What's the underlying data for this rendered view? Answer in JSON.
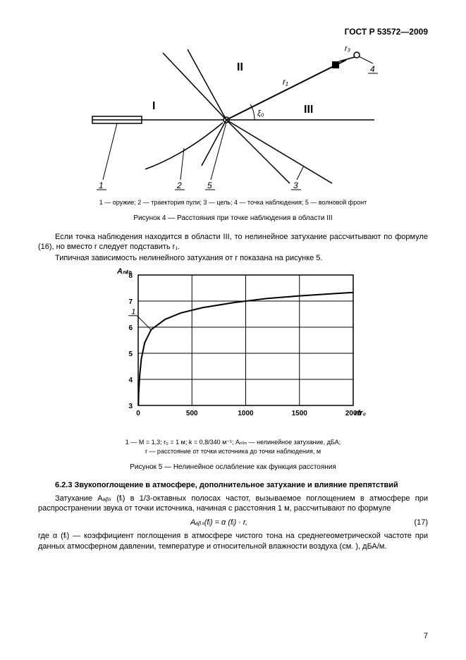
{
  "header": {
    "doc_id": "ГОСТ Р 53572—2009"
  },
  "fig4": {
    "legend_items": [
      "1 — оружие; 2 — траектория пули; 3 — цель; 4 — точка наблюдения; 5 — волновой фронт"
    ],
    "title": "Рисунок 4 — Расстояния при точке наблюдения в области III",
    "labels": {
      "I": "I",
      "II": "II",
      "III": "III",
      "r1": "r₁",
      "r3": "r₃",
      "xi": "ξ₀",
      "n1": "1",
      "n2": "2",
      "n3": "3",
      "n4": "4",
      "n5": "5"
    },
    "stroke": "#000000"
  },
  "para1": "Если точка наблюдения находится в области III, то нелинейное затухание рассчитывают по формуле (16), но вместо r следует подставить r₁.",
  "para2": "Типичная зависимость нелинейного затухания от r показана на рисунке 5.",
  "fig5": {
    "type": "line",
    "xlim": [
      0,
      2000
    ],
    "ylim": [
      3,
      8
    ],
    "xticks": [
      0,
      500,
      1000,
      1500,
      2000
    ],
    "yticks": [
      3,
      4,
      5,
      6,
      7,
      8
    ],
    "xlabel": "r/r₀",
    "ylabel": "Aₙₗᵢₙ",
    "line_color": "#000000",
    "line_width": 2,
    "grid_color": "#000000",
    "background_color": "#ffffff",
    "marker_label": "1",
    "data": [
      [
        2,
        3.0
      ],
      [
        5,
        3.5
      ],
      [
        15,
        4.2
      ],
      [
        30,
        4.8
      ],
      [
        60,
        5.4
      ],
      [
        120,
        5.9
      ],
      [
        250,
        6.3
      ],
      [
        400,
        6.55
      ],
      [
        600,
        6.75
      ],
      [
        900,
        6.95
      ],
      [
        1200,
        7.1
      ],
      [
        1500,
        7.2
      ],
      [
        1800,
        7.28
      ],
      [
        2000,
        7.33
      ]
    ],
    "legend": "1 — M = 1,3; r₀ = 1 м; k = 0,8/340 м⁻¹; Aₙₗᵢₙ — нелинейное затухание, дБА;\nr — расстояние от точки источника до точки наблюдения, м",
    "title": "Рисунок 5 — Нелинейное ослабление как функция расстояния"
  },
  "section": {
    "num_title": "6.2.3  Звукопоглощение в атмосфере, дополнительное затухание и влияние препятствий",
    "p1": "Затухание Aₐᵦₛ (fᵢ) в 1/3-октавных полосах частот, вызываемое поглощением в атмосфере при распространении звука от точки источника, начиная с расстояния 1 м, рассчитывают по формуле",
    "formula": "Aₐᵦₛ(fᵢ) = α (fᵢ) · r,",
    "formula_num": "(17)",
    "p2": "где  α (fᵢ) — коэффициент поглощения в атмосфере чистого тона на среднегеометрической частоте при данных атмосферном давлении, температуре и относительной влажности воздуха (см. ), дБА/м."
  },
  "page_number": "7"
}
